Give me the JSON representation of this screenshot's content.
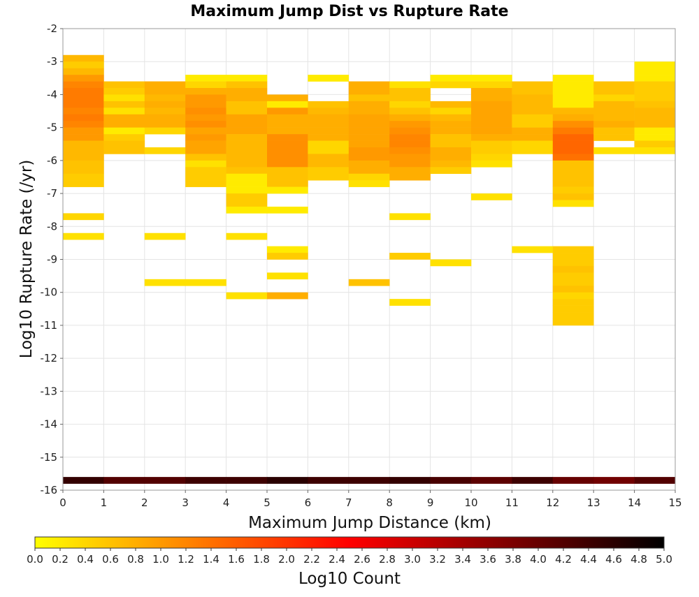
{
  "chart_data": {
    "type": "heatmap",
    "title": "Maximum Jump Dist vs Rupture Rate",
    "xlabel": "Maximum Jump Distance (km)",
    "ylabel": "Log10 Rupture Rate (/yr)",
    "xlim": [
      0,
      15
    ],
    "ylim": [
      -16,
      -2
    ],
    "xticks": [
      "0",
      "1",
      "2",
      "3",
      "4",
      "5",
      "6",
      "7",
      "8",
      "9",
      "10",
      "11",
      "12",
      "13",
      "14",
      "15"
    ],
    "yticks": [
      "-2",
      "-3",
      "-4",
      "-5",
      "-6",
      "-7",
      "-8",
      "-9",
      "-10",
      "-11",
      "-12",
      "-13",
      "-14",
      "-15",
      "-16"
    ],
    "x_bin_width": 1,
    "y_bin_height": 0.2,
    "grid": true,
    "colorbar": {
      "label": "Log10 Count",
      "min": 0,
      "max": 5,
      "ticks": [
        "0.0",
        "0.2",
        "0.4",
        "0.6",
        "0.8",
        "1.0",
        "1.2",
        "1.4",
        "1.6",
        "1.8",
        "2.0",
        "2.2",
        "2.4",
        "2.6",
        "2.8",
        "3.0",
        "3.2",
        "3.4",
        "3.6",
        "3.8",
        "4.0",
        "4.2",
        "4.4",
        "4.6",
        "4.8",
        "5.0"
      ],
      "colors": [
        "#ffff00",
        "#ff8000",
        "#ff0000",
        "#800000",
        "#000000"
      ]
    },
    "columns": [
      {
        "x": 0,
        "cells": [
          [
            -3.0,
            0.7
          ],
          [
            -3.2,
            0.5
          ],
          [
            -3.4,
            0.7
          ],
          [
            -3.6,
            1.0
          ],
          [
            -3.8,
            1.2
          ],
          [
            -4.0,
            1.3
          ],
          [
            -4.2,
            1.3
          ],
          [
            -4.4,
            1.3
          ],
          [
            -4.6,
            1.2
          ],
          [
            -4.8,
            1.3
          ],
          [
            -5.0,
            1.2
          ],
          [
            -5.2,
            1.0
          ],
          [
            -5.4,
            1.0
          ],
          [
            -5.6,
            0.7
          ],
          [
            -5.8,
            0.7
          ],
          [
            -6.0,
            0.7
          ],
          [
            -6.2,
            0.6
          ],
          [
            -6.4,
            0.6
          ],
          [
            -6.6,
            0.5
          ],
          [
            -6.8,
            0.5
          ],
          [
            -7.8,
            0.4
          ],
          [
            -8.4,
            0.3
          ],
          [
            -15.8,
            4.5
          ]
        ]
      },
      {
        "x": 1,
        "cells": [
          [
            -3.8,
            0.6
          ],
          [
            -4.0,
            0.5
          ],
          [
            -4.2,
            0.3
          ],
          [
            -4.4,
            0.6
          ],
          [
            -4.6,
            0.3
          ],
          [
            -4.8,
            0.8
          ],
          [
            -5.0,
            0.8
          ],
          [
            -5.2,
            0.2
          ],
          [
            -5.4,
            0.5
          ],
          [
            -5.6,
            0.6
          ],
          [
            -5.8,
            0.6
          ],
          [
            -15.8,
            4.2
          ]
        ]
      },
      {
        "x": 2,
        "cells": [
          [
            -3.8,
            0.8
          ],
          [
            -4.0,
            0.8
          ],
          [
            -4.2,
            0.7
          ],
          [
            -4.4,
            0.8
          ],
          [
            -4.6,
            0.7
          ],
          [
            -4.8,
            0.8
          ],
          [
            -5.0,
            0.8
          ],
          [
            -5.2,
            0.4
          ],
          [
            -5.8,
            0.4
          ],
          [
            -8.4,
            0.3
          ],
          [
            -9.8,
            0.3
          ],
          [
            -15.8,
            4.2
          ]
        ]
      },
      {
        "x": 3,
        "cells": [
          [
            -3.6,
            0.2
          ],
          [
            -3.8,
            0.4
          ],
          [
            -4.0,
            0.8
          ],
          [
            -4.2,
            1.0
          ],
          [
            -4.4,
            1.0
          ],
          [
            -4.6,
            1.1
          ],
          [
            -4.8,
            1.0
          ],
          [
            -5.0,
            1.1
          ],
          [
            -5.2,
            0.9
          ],
          [
            -5.4,
            1.0
          ],
          [
            -5.6,
            0.9
          ],
          [
            -5.8,
            0.9
          ],
          [
            -6.0,
            0.6
          ],
          [
            -6.2,
            0.3
          ],
          [
            -6.4,
            0.5
          ],
          [
            -6.6,
            0.5
          ],
          [
            -6.8,
            0.5
          ],
          [
            -9.8,
            0.3
          ],
          [
            -15.8,
            4.4
          ]
        ]
      },
      {
        "x": 4,
        "cells": [
          [
            -3.6,
            0.2
          ],
          [
            -3.8,
            0.6
          ],
          [
            -4.0,
            0.8
          ],
          [
            -4.2,
            0.8
          ],
          [
            -4.4,
            0.6
          ],
          [
            -4.6,
            0.6
          ],
          [
            -4.8,
            0.9
          ],
          [
            -5.0,
            0.9
          ],
          [
            -5.2,
            0.9
          ],
          [
            -5.4,
            0.7
          ],
          [
            -5.6,
            0.7
          ],
          [
            -5.8,
            0.7
          ],
          [
            -6.0,
            0.7
          ],
          [
            -6.2,
            0.7
          ],
          [
            -6.4,
            0.6
          ],
          [
            -6.6,
            0.2
          ],
          [
            -6.8,
            0.2
          ],
          [
            -7.0,
            0.2
          ],
          [
            -7.2,
            0.5
          ],
          [
            -7.4,
            0.5
          ],
          [
            -7.6,
            0.2
          ],
          [
            -8.4,
            0.3
          ],
          [
            -10.2,
            0.3
          ],
          [
            -15.8,
            4.4
          ]
        ]
      },
      {
        "x": 5,
        "cells": [
          [
            -4.2,
            0.8
          ],
          [
            -4.4,
            0.2
          ],
          [
            -4.6,
            1.0
          ],
          [
            -4.8,
            0.8
          ],
          [
            -5.0,
            0.8
          ],
          [
            -5.2,
            0.8
          ],
          [
            -5.4,
            1.1
          ],
          [
            -5.6,
            1.1
          ],
          [
            -5.8,
            1.1
          ],
          [
            -6.0,
            1.1
          ],
          [
            -6.2,
            1.1
          ],
          [
            -6.4,
            0.6
          ],
          [
            -6.6,
            0.6
          ],
          [
            -6.8,
            0.6
          ],
          [
            -7.0,
            0.2
          ],
          [
            -7.6,
            0.2
          ],
          [
            -8.8,
            0.2
          ],
          [
            -9.0,
            0.5
          ],
          [
            -9.6,
            0.3
          ],
          [
            -10.2,
            0.8
          ],
          [
            -15.8,
            4.6
          ]
        ]
      },
      {
        "x": 6,
        "cells": [
          [
            -3.6,
            0.2
          ],
          [
            -4.4,
            0.6
          ],
          [
            -4.6,
            0.7
          ],
          [
            -4.8,
            0.8
          ],
          [
            -5.0,
            0.8
          ],
          [
            -5.2,
            0.8
          ],
          [
            -5.4,
            0.8
          ],
          [
            -5.6,
            0.4
          ],
          [
            -5.8,
            0.4
          ],
          [
            -6.0,
            0.7
          ],
          [
            -6.2,
            0.7
          ],
          [
            -6.4,
            0.5
          ],
          [
            -6.6,
            0.5
          ],
          [
            -15.8,
            4.4
          ]
        ]
      },
      {
        "x": 7,
        "cells": [
          [
            -3.8,
            0.8
          ],
          [
            -4.0,
            0.8
          ],
          [
            -4.2,
            0.6
          ],
          [
            -4.4,
            0.8
          ],
          [
            -4.6,
            0.8
          ],
          [
            -4.8,
            0.9
          ],
          [
            -5.0,
            0.9
          ],
          [
            -5.2,
            0.9
          ],
          [
            -5.4,
            0.9
          ],
          [
            -5.6,
            0.9
          ],
          [
            -5.8,
            1.0
          ],
          [
            -6.0,
            1.0
          ],
          [
            -6.2,
            0.8
          ],
          [
            -6.4,
            0.8
          ],
          [
            -6.6,
            0.4
          ],
          [
            -6.8,
            0.3
          ],
          [
            -9.8,
            0.6
          ],
          [
            -15.8,
            4.4
          ]
        ]
      },
      {
        "x": 8,
        "cells": [
          [
            -3.8,
            0.3
          ],
          [
            -4.0,
            0.6
          ],
          [
            -4.2,
            0.6
          ],
          [
            -4.4,
            0.4
          ],
          [
            -4.6,
            0.6
          ],
          [
            -4.8,
            0.8
          ],
          [
            -5.0,
            1.0
          ],
          [
            -5.2,
            1.1
          ],
          [
            -5.4,
            1.2
          ],
          [
            -5.6,
            1.2
          ],
          [
            -5.8,
            1.1
          ],
          [
            -6.0,
            1.0
          ],
          [
            -6.2,
            1.0
          ],
          [
            -6.4,
            0.8
          ],
          [
            -6.6,
            0.8
          ],
          [
            -7.8,
            0.3
          ],
          [
            -9.0,
            0.5
          ],
          [
            -10.4,
            0.3
          ],
          [
            -15.8,
            4.5
          ]
        ]
      },
      {
        "x": 9,
        "cells": [
          [
            -3.6,
            0.2
          ],
          [
            -3.8,
            0.4
          ],
          [
            -4.4,
            0.7
          ],
          [
            -4.6,
            0.4
          ],
          [
            -4.8,
            0.7
          ],
          [
            -5.0,
            0.8
          ],
          [
            -5.2,
            0.8
          ],
          [
            -5.4,
            0.6
          ],
          [
            -5.6,
            0.6
          ],
          [
            -5.8,
            0.8
          ],
          [
            -6.0,
            0.8
          ],
          [
            -6.2,
            0.7
          ],
          [
            -6.4,
            0.5
          ],
          [
            -9.2,
            0.3
          ],
          [
            -15.8,
            4.3
          ]
        ]
      },
      {
        "x": 10,
        "cells": [
          [
            -3.6,
            0.2
          ],
          [
            -3.8,
            0.4
          ],
          [
            -4.0,
            0.8
          ],
          [
            -4.2,
            0.8
          ],
          [
            -4.4,
            0.9
          ],
          [
            -4.6,
            0.9
          ],
          [
            -4.8,
            0.9
          ],
          [
            -5.0,
            0.9
          ],
          [
            -5.2,
            0.9
          ],
          [
            -5.4,
            0.8
          ],
          [
            -5.6,
            0.5
          ],
          [
            -5.8,
            0.5
          ],
          [
            -6.0,
            0.4
          ],
          [
            -6.2,
            0.3
          ],
          [
            -7.2,
            0.3
          ],
          [
            -15.8,
            4.1
          ]
        ]
      },
      {
        "x": 11,
        "cells": [
          [
            -3.8,
            0.6
          ],
          [
            -4.0,
            0.6
          ],
          [
            -4.2,
            0.7
          ],
          [
            -4.4,
            0.7
          ],
          [
            -4.6,
            0.7
          ],
          [
            -4.8,
            0.5
          ],
          [
            -5.0,
            0.5
          ],
          [
            -5.2,
            0.8
          ],
          [
            -5.4,
            0.8
          ],
          [
            -5.6,
            0.4
          ],
          [
            -5.8,
            0.4
          ],
          [
            -8.8,
            0.3
          ],
          [
            -15.8,
            4.4
          ]
        ]
      },
      {
        "x": 12,
        "cells": [
          [
            -3.6,
            0.2
          ],
          [
            -3.8,
            0.2
          ],
          [
            -4.0,
            0.2
          ],
          [
            -4.2,
            0.2
          ],
          [
            -4.4,
            0.2
          ],
          [
            -4.6,
            0.7
          ],
          [
            -4.8,
            0.8
          ],
          [
            -5.0,
            1.1
          ],
          [
            -5.2,
            1.3
          ],
          [
            -5.4,
            1.5
          ],
          [
            -5.6,
            1.5
          ],
          [
            -5.8,
            1.5
          ],
          [
            -6.0,
            1.4
          ],
          [
            -6.2,
            0.6
          ],
          [
            -6.4,
            0.6
          ],
          [
            -6.6,
            0.6
          ],
          [
            -6.8,
            0.6
          ],
          [
            -7.0,
            0.5
          ],
          [
            -7.2,
            0.6
          ],
          [
            -7.4,
            0.3
          ],
          [
            -8.8,
            0.5
          ],
          [
            -9.0,
            0.5
          ],
          [
            -9.2,
            0.5
          ],
          [
            -9.4,
            0.6
          ],
          [
            -9.6,
            0.5
          ],
          [
            -9.8,
            0.5
          ],
          [
            -10.0,
            0.6
          ],
          [
            -10.2,
            0.4
          ],
          [
            -10.4,
            0.5
          ],
          [
            -10.6,
            0.5
          ],
          [
            -10.8,
            0.5
          ],
          [
            -11.0,
            0.5
          ],
          [
            -15.8,
            4.0
          ]
        ]
      },
      {
        "x": 13,
        "cells": [
          [
            -3.8,
            0.6
          ],
          [
            -4.0,
            0.6
          ],
          [
            -4.2,
            0.4
          ],
          [
            -4.4,
            0.7
          ],
          [
            -4.6,
            0.7
          ],
          [
            -4.8,
            0.7
          ],
          [
            -5.0,
            0.8
          ],
          [
            -5.2,
            0.6
          ],
          [
            -5.4,
            0.6
          ],
          [
            -5.8,
            0.3
          ],
          [
            -15.8,
            3.9
          ]
        ]
      },
      {
        "x": 14,
        "cells": [
          [
            -3.2,
            0.2
          ],
          [
            -3.4,
            0.2
          ],
          [
            -3.6,
            0.2
          ],
          [
            -3.8,
            0.5
          ],
          [
            -4.0,
            0.5
          ],
          [
            -4.2,
            0.5
          ],
          [
            -4.4,
            0.6
          ],
          [
            -4.6,
            0.7
          ],
          [
            -4.8,
            0.7
          ],
          [
            -5.0,
            0.7
          ],
          [
            -5.2,
            0.2
          ],
          [
            -5.4,
            0.2
          ],
          [
            -5.6,
            0.5
          ],
          [
            -5.8,
            0.3
          ],
          [
            -15.8,
            4.2
          ]
        ]
      }
    ]
  }
}
